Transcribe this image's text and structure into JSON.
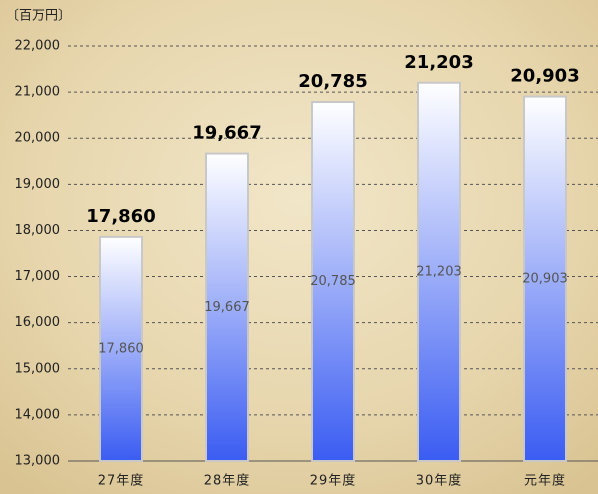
{
  "chart_data": {
    "type": "bar",
    "unit_label": "〔百万円〕",
    "categories": [
      "27年度",
      "28年度",
      "29年度",
      "30年度",
      "元年度"
    ],
    "values": [
      17860,
      19667,
      20785,
      21203,
      20903
    ],
    "value_labels": [
      "17,860",
      "19,667",
      "20,785",
      "21,203",
      "20,903"
    ],
    "color": "#3a5cf2",
    "ylim": [
      13000,
      22000
    ],
    "yticks": [
      {
        "value": 13000,
        "label": "13,000"
      },
      {
        "value": 14000,
        "label": "14,000"
      },
      {
        "value": 15000,
        "label": "15,000"
      },
      {
        "value": 16000,
        "label": "16,000"
      },
      {
        "value": 17000,
        "label": "17,000"
      },
      {
        "value": 18000,
        "label": "18,000"
      },
      {
        "value": 19000,
        "label": "19,000"
      },
      {
        "value": 20000,
        "label": "20,000"
      },
      {
        "value": 21000,
        "label": "21,000"
      },
      {
        "value": 22000,
        "label": "22,000"
      }
    ],
    "grid": true
  }
}
